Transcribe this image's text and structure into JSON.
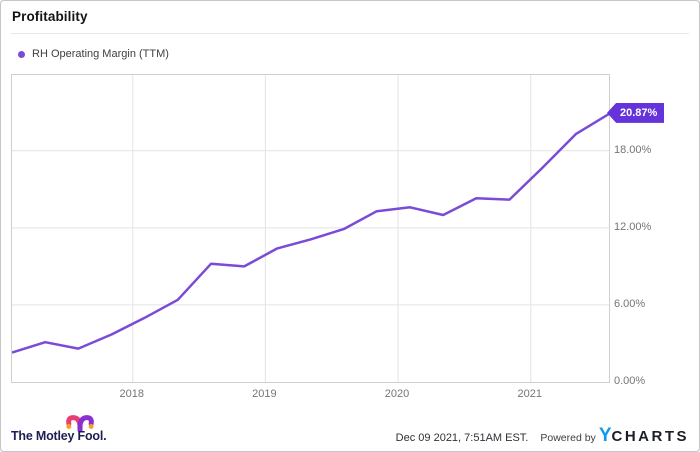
{
  "header": {
    "title": "Profitability"
  },
  "legend": {
    "label": "RH Operating Margin (TTM)",
    "dot_color": "#7a4bd6"
  },
  "chart_data": {
    "type": "line",
    "title": "Profitability",
    "series": [
      {
        "name": "RH Operating Margin (TTM)",
        "x": [
          "2017 Q1",
          "2017 Q2",
          "2017 Q3",
          "2017 Q4",
          "2018 Q1",
          "2018 Q2",
          "2018 Q3",
          "2018 Q4",
          "2019 Q1",
          "2019 Q2",
          "2019 Q3",
          "2019 Q4",
          "2020 Q1",
          "2020 Q2",
          "2020 Q3",
          "2020 Q4",
          "2021 Q1",
          "2021 Q2",
          "2021 Q3"
        ],
        "values": [
          2.3,
          3.1,
          2.6,
          3.7,
          5.0,
          6.4,
          9.2,
          9.0,
          10.4,
          11.1,
          11.9,
          13.3,
          13.6,
          13.0,
          14.3,
          14.2,
          16.7,
          19.3,
          20.87
        ]
      }
    ],
    "unit": "%",
    "end_label": "20.87%",
    "ylim": [
      0,
      23.9
    ],
    "y_ticks": [
      {
        "value": 0,
        "label": "0.00%"
      },
      {
        "value": 6,
        "label": "6.00%"
      },
      {
        "value": 12,
        "label": "12.00%"
      },
      {
        "value": 18,
        "label": "18.00%"
      }
    ],
    "y_grid_values": [
      6,
      12,
      18
    ],
    "x_range": [
      2017.09,
      2021.59
    ],
    "x_ticks": [
      {
        "value": 2018,
        "label": "2018"
      },
      {
        "value": 2019,
        "label": "2019"
      },
      {
        "value": 2020,
        "label": "2020"
      },
      {
        "value": 2021,
        "label": "2021"
      }
    ],
    "grid": true,
    "legend_position": "top-left",
    "line_color": "#7a4bd6"
  },
  "colors": {
    "accent_purple": "#7a4bd6",
    "tag_background": "#6433d9",
    "grid_line": "#e3e3e3",
    "plot_border": "#cfcfcf",
    "tick_text": "#757575",
    "ycharts_blue": "#0d9bf2",
    "fool_navy": "#1e1e52",
    "fool_pink": "#e83e72",
    "fool_purple": "#8c2fd0",
    "fool_gold": "#f2a51c"
  },
  "footer": {
    "brand": "The Motley Fool.",
    "timestamp": "Dec 09 2021, 7:51AM EST.",
    "powered_by": "Powered by",
    "ycharts_y": "Y",
    "ycharts_charts": "CHARTS"
  }
}
